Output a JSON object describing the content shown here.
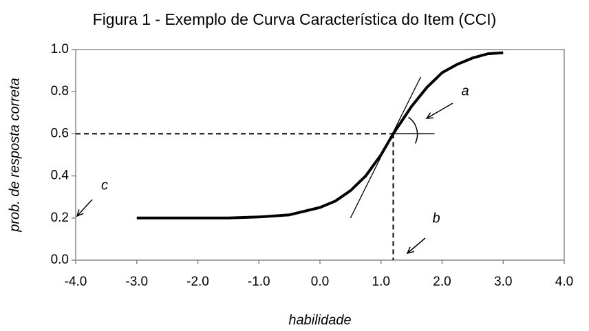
{
  "chart_data": {
    "type": "line",
    "title": "Figura 1 - Exemplo de Curva Característica do Item (CCI)",
    "x_label": "habilidade",
    "y_label": "prob. de resposta correta",
    "x": [
      -3,
      -2.5,
      -2,
      -1.5,
      -1,
      -0.5,
      0,
      0.25,
      0.5,
      0.75,
      1,
      1.2,
      1.5,
      1.75,
      2,
      2.25,
      2.5,
      2.75,
      3
    ],
    "series": [
      {
        "color": "#000000",
        "values": [
          0.2,
          0.2,
          0.2,
          0.2,
          0.205,
          0.215,
          0.25,
          0.28,
          0.33,
          0.4,
          0.5,
          0.6,
          0.73,
          0.82,
          0.89,
          0.93,
          0.96,
          0.98,
          0.985
        ]
      }
    ],
    "xlim": [
      -4,
      4
    ],
    "ylim": [
      0,
      1
    ],
    "xticks": [
      {
        "value": -4,
        "label": "-4.0"
      },
      {
        "value": -3,
        "label": "-3.0"
      },
      {
        "value": -2,
        "label": "-2.0"
      },
      {
        "value": -1,
        "label": "-1.0"
      },
      {
        "value": 0,
        "label": "0.0"
      },
      {
        "value": 1,
        "label": "1.0"
      },
      {
        "value": 2,
        "label": "2.0"
      },
      {
        "value": 3,
        "label": "3.0"
      },
      {
        "value": 4,
        "label": "4.0"
      }
    ],
    "yticks": [
      {
        "value": 0,
        "label": "0.0"
      },
      {
        "value": 0.2,
        "label": "0.2"
      },
      {
        "value": 0.4,
        "label": "0.4"
      },
      {
        "value": 0.6,
        "label": "0.6"
      },
      {
        "value": 0.8,
        "label": "0.8"
      },
      {
        "value": 1,
        "label": "1.0"
      }
    ],
    "guide": {
      "x": 1.2,
      "y": 0.6
    },
    "tangent": {
      "x": [
        0.5,
        1.65
      ],
      "y": [
        0.2,
        0.87
      ]
    },
    "annotations": [
      {
        "text": "a"
      },
      {
        "text": "b"
      },
      {
        "text": "c"
      }
    ]
  }
}
